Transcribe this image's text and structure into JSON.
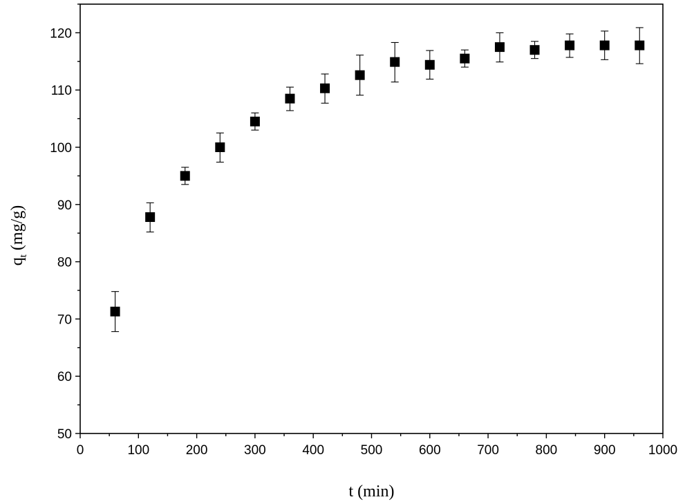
{
  "chart_data": {
    "type": "scatter",
    "title": "",
    "xlabel": "t (min)",
    "ylabel": {
      "main": "q",
      "subscript": "t",
      "unit": " (mg/g)"
    },
    "xlim": [
      0,
      1000
    ],
    "ylim": [
      50,
      125
    ],
    "xticks": [
      "0",
      "100",
      "200",
      "300",
      "400",
      "500",
      "600",
      "700",
      "800",
      "900",
      "1000"
    ],
    "yticks": [
      "50",
      "60",
      "70",
      "80",
      "90",
      "100",
      "110",
      "120"
    ],
    "grid": false,
    "legend": "none",
    "marker": "filled-square",
    "color": "#000000",
    "series": [
      {
        "x": [
          60,
          120,
          180,
          240,
          300,
          360,
          420,
          480,
          540,
          600,
          660,
          720,
          780,
          840,
          900,
          960
        ],
        "y": [
          71.3,
          87.8,
          95.0,
          100.0,
          104.5,
          108.5,
          110.3,
          112.6,
          114.9,
          114.4,
          115.5,
          117.5,
          117.0,
          117.8,
          117.8,
          117.8
        ],
        "err_low": [
          3.5,
          2.6,
          1.5,
          2.6,
          1.5,
          2.1,
          2.6,
          3.5,
          3.5,
          2.5,
          1.5,
          2.6,
          1.5,
          2.1,
          2.5,
          3.2
        ],
        "err_high": [
          3.5,
          2.5,
          1.5,
          2.5,
          1.5,
          2.0,
          2.5,
          3.5,
          3.4,
          2.5,
          1.5,
          2.5,
          1.5,
          2.0,
          2.5,
          3.1
        ]
      }
    ]
  }
}
